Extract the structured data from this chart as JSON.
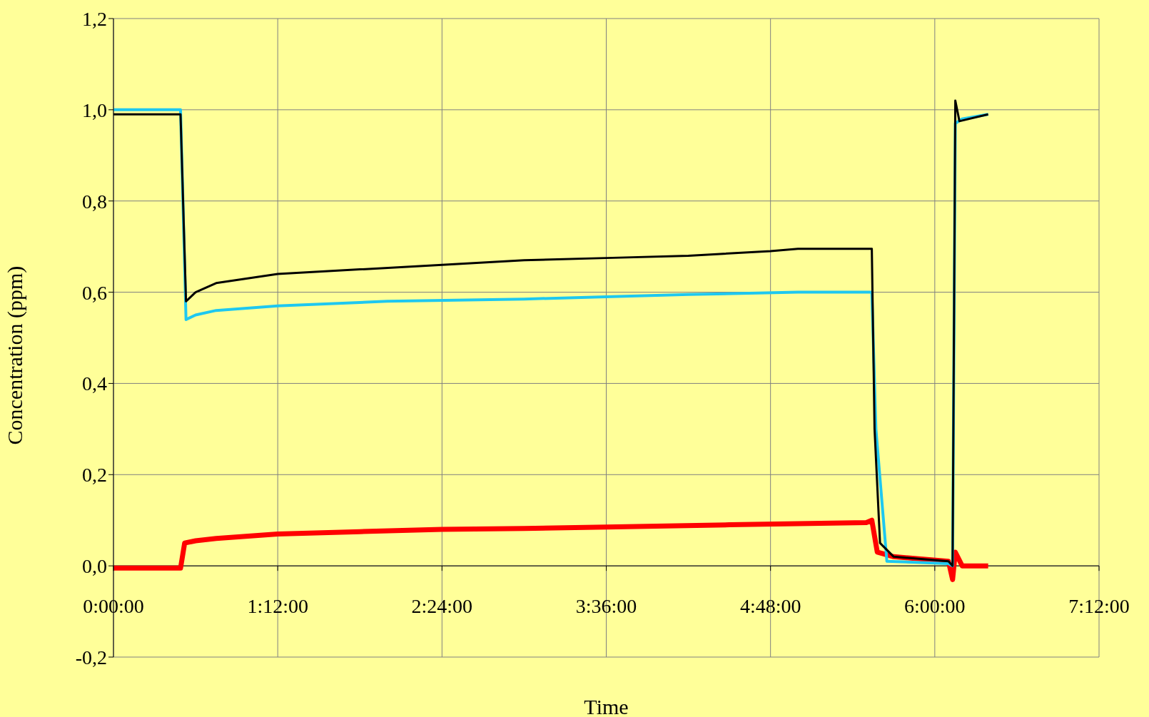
{
  "chart_data": {
    "type": "line",
    "xlabel": "Time",
    "ylabel": "Concentration (ppm)",
    "xlim": [
      0,
      7.2
    ],
    "xticks": [
      {
        "value": 0,
        "label": "0:00:00"
      },
      {
        "value": 1.2,
        "label": "1:12:00"
      },
      {
        "value": 2.4,
        "label": "2:24:00"
      },
      {
        "value": 3.6,
        "label": "3:36:00"
      },
      {
        "value": 4.8,
        "label": "4:48:00"
      },
      {
        "value": 6,
        "label": "6:00:00"
      },
      {
        "value": 7.2,
        "label": "7:12:00"
      }
    ],
    "ylim": [
      -0.2,
      1.2
    ],
    "yticks": [
      {
        "value": -0.2,
        "label": "-0,2"
      },
      {
        "value": 0,
        "label": "0,0"
      },
      {
        "value": 0.2,
        "label": "0,2"
      },
      {
        "value": 0.4,
        "label": "0,4"
      },
      {
        "value": 0.6,
        "label": "0,6"
      },
      {
        "value": 0.8,
        "label": "0,8"
      },
      {
        "value": 1,
        "label": "1,0"
      },
      {
        "value": 1.2,
        "label": "1,2"
      }
    ],
    "grid": true,
    "marker": "none",
    "line_style": "solid",
    "series": [
      {
        "color": "#000000",
        "x": [
          0,
          0.25,
          0.49,
          0.53,
          0.6,
          0.75,
          1.2,
          1.8,
          2.4,
          3,
          3.6,
          4.2,
          4.8,
          5.0,
          5.54,
          5.56,
          5.6,
          5.7,
          6.1,
          6.13,
          6.15,
          6.18,
          6.39
        ],
        "values": [
          0.99,
          0.99,
          0.99,
          0.58,
          0.6,
          0.62,
          0.64,
          0.65,
          0.66,
          0.67,
          0.675,
          0.68,
          0.69,
          0.695,
          0.695,
          0.3,
          0.05,
          0.02,
          0.01,
          0,
          1.02,
          0.975,
          0.99
        ]
      },
      {
        "color": "#1ec8f0",
        "x": [
          0,
          0.25,
          0.49,
          0.53,
          0.6,
          0.75,
          1.2,
          2,
          3,
          3.6,
          4.2,
          5,
          5.54,
          5.57,
          5.65,
          6.1,
          6.13,
          6.15,
          6.2,
          6.39
        ],
        "values": [
          1,
          1,
          1,
          0.54,
          0.55,
          0.56,
          0.57,
          0.58,
          0.585,
          0.59,
          0.595,
          0.6,
          0.6,
          0.3,
          0.01,
          0.005,
          0,
          0.97,
          0.98,
          0.99
        ]
      },
      {
        "color": "#ff0000",
        "x": [
          0,
          0.25,
          0.49,
          0.52,
          0.6,
          0.75,
          1.2,
          1.8,
          2.4,
          3,
          3.6,
          4.5,
          5.5,
          5.54,
          5.58,
          5.7,
          6.1,
          6.13,
          6.15,
          6.2,
          6.39
        ],
        "values": [
          -0.005,
          -0.005,
          -0.005,
          0.05,
          0.055,
          0.06,
          0.07,
          0.075,
          0.08,
          0.082,
          0.085,
          0.09,
          0.095,
          0.1,
          0.03,
          0.02,
          0.01,
          -0.03,
          0.03,
          0,
          0
        ]
      }
    ]
  }
}
